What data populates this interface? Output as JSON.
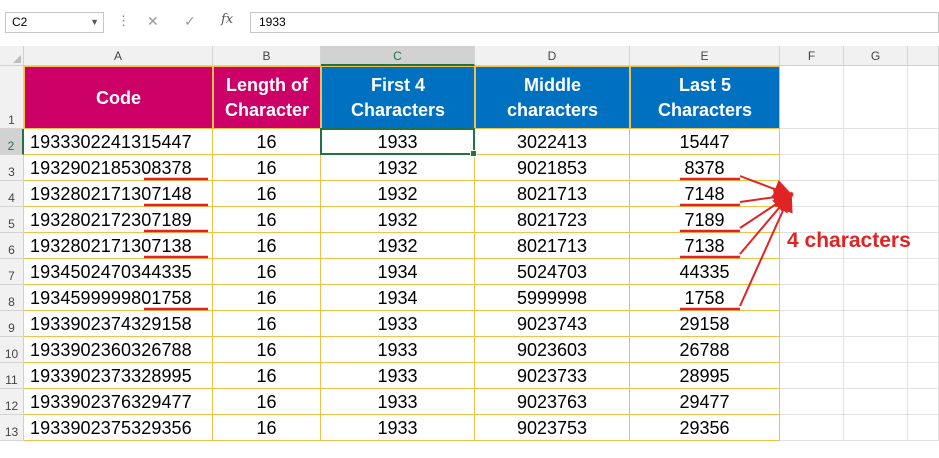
{
  "formula_bar": {
    "name_box": "C2",
    "formula": "1933",
    "cancel_icon": "✕",
    "enter_icon": "✓",
    "fx_label": "fx"
  },
  "columns": [
    "A",
    "B",
    "C",
    "D",
    "E",
    "F",
    "G"
  ],
  "selected_column": "C",
  "selected_row": "2",
  "header_row": {
    "row_label": "1",
    "cells": [
      "Code",
      "Length of Character",
      "First 4 Characters",
      "Middle characters",
      "Last 5 Characters"
    ],
    "lines": [
      [
        "Code"
      ],
      [
        "Length of",
        "Character"
      ],
      [
        "First 4",
        "Characters"
      ],
      [
        "Middle",
        "characters"
      ],
      [
        "Last 5",
        "Characters"
      ]
    ],
    "colors": [
      "#cc0066",
      "#cc0066",
      "#0070c0",
      "#0070c0",
      "#0070c0"
    ]
  },
  "rows": [
    {
      "row": "2",
      "code": "1933302241315447",
      "length": "16",
      "first4": "1933",
      "middle": "3022413",
      "last5": "15447"
    },
    {
      "row": "3",
      "code": "1932902185308378",
      "length": "16",
      "first4": "1932",
      "middle": "9021853",
      "last5": "8378"
    },
    {
      "row": "4",
      "code": "1932802171307148",
      "length": "16",
      "first4": "1932",
      "middle": "8021713",
      "last5": "7148"
    },
    {
      "row": "5",
      "code": "1932802172307189",
      "length": "16",
      "first4": "1932",
      "middle": "8021723",
      "last5": "7189"
    },
    {
      "row": "6",
      "code": "1932802171307138",
      "length": "16",
      "first4": "1932",
      "middle": "8021713",
      "last5": "7138"
    },
    {
      "row": "7",
      "code": "1934502470344335",
      "length": "16",
      "first4": "1934",
      "middle": "5024703",
      "last5": "44335"
    },
    {
      "row": "8",
      "code": "1934599999801758",
      "length": "16",
      "first4": "1934",
      "middle": "5999998",
      "last5": "1758"
    },
    {
      "row": "9",
      "code": "1933902374329158",
      "length": "16",
      "first4": "1933",
      "middle": "9023743",
      "last5": "29158"
    },
    {
      "row": "10",
      "code": "1933902360326788",
      "length": "16",
      "first4": "1933",
      "middle": "9023603",
      "last5": "26788"
    },
    {
      "row": "11",
      "code": "1933902373328995",
      "length": "16",
      "first4": "1933",
      "middle": "9023733",
      "last5": "28995"
    },
    {
      "row": "12",
      "code": "1933902376329477",
      "length": "16",
      "first4": "1933",
      "middle": "9023763",
      "last5": "29477"
    },
    {
      "row": "13",
      "code": "1933902375329356",
      "length": "16",
      "first4": "1933",
      "middle": "9023753",
      "last5": "29356"
    }
  ],
  "underlined_rows": [
    "3",
    "4",
    "5",
    "6",
    "8"
  ],
  "annotation": {
    "text": "4 characters",
    "color": "#e02424"
  }
}
